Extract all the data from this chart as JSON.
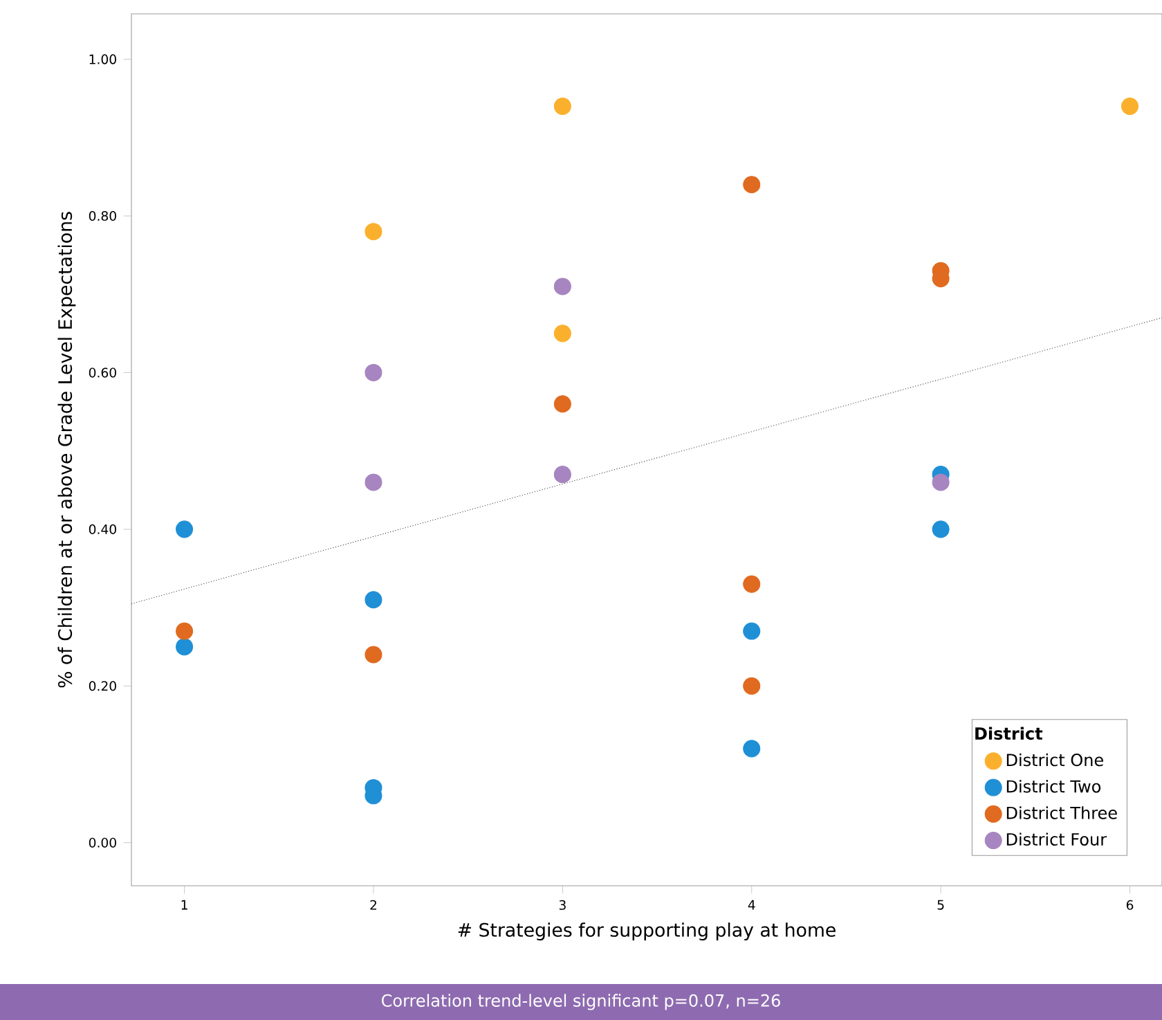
{
  "chart_data": {
    "type": "scatter",
    "xlabel": "# Strategies for supporting play at home",
    "ylabel": "% of Children at or above Grade Level Expectations",
    "legend_title": "District",
    "legend": "bottom right",
    "marker": "circle",
    "grid": false,
    "xlim": [
      0.72,
      6.17
    ],
    "ylim": [
      -0.055,
      1.058
    ],
    "xticks": [
      1,
      2,
      3,
      4,
      5,
      6
    ],
    "yticks": [
      {
        "value": 0,
        "label": "0.00"
      },
      {
        "value": 0.2,
        "label": "0.20"
      },
      {
        "value": 0.4,
        "label": "0.40"
      },
      {
        "value": 0.6,
        "label": "0.60"
      },
      {
        "value": 0.8,
        "label": "0.80"
      },
      {
        "value": 1,
        "label": "1.00"
      }
    ],
    "series": [
      {
        "name": "District One",
        "color": "#fbb02d",
        "x": [
          2,
          3,
          3,
          6
        ],
        "values": [
          0.78,
          0.94,
          0.65,
          0.94
        ]
      },
      {
        "name": "District Two",
        "color": "#1f8fd6",
        "x": [
          1,
          1,
          2,
          2,
          2,
          4,
          4,
          5,
          5
        ],
        "values": [
          0.4,
          0.25,
          0.31,
          0.07,
          0.06,
          0.27,
          0.12,
          0.47,
          0.4
        ]
      },
      {
        "name": "District Three",
        "color": "#e06a1f",
        "x": [
          1,
          2,
          3,
          4,
          4,
          4,
          5,
          5
        ],
        "values": [
          0.27,
          0.24,
          0.56,
          0.84,
          0.33,
          0.2,
          0.73,
          0.72
        ]
      },
      {
        "name": "District Four",
        "color": "#a785c0",
        "x": [
          2,
          2,
          3,
          3,
          5
        ],
        "values": [
          0.6,
          0.46,
          0.71,
          0.47,
          0.46
        ]
      },
      {
        "type": "line",
        "color": "#333333",
        "line_style": "dotted",
        "marker": "none",
        "x": [
          0.72,
          6.17
        ],
        "values": [
          0.305,
          0.67
        ]
      }
    ],
    "annotations": [
      "Correlation trend-level significant p=0.07, n=26"
    ]
  }
}
